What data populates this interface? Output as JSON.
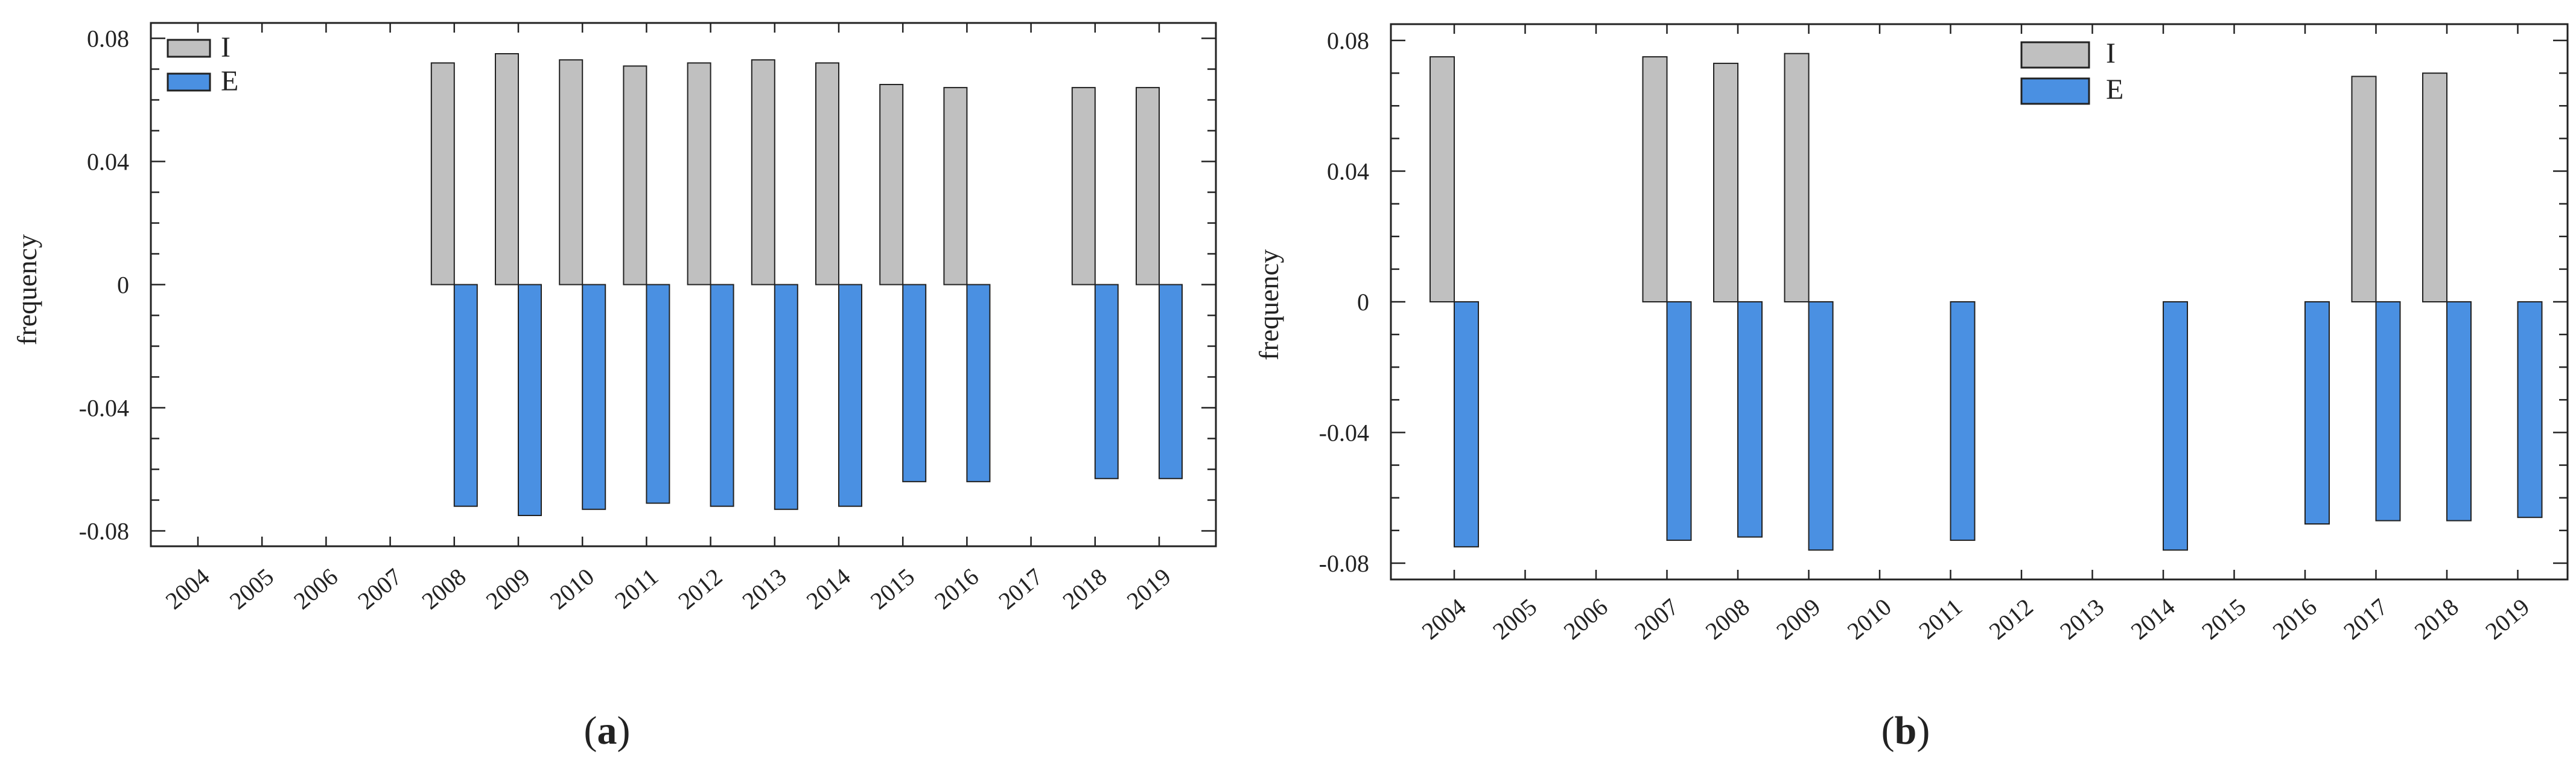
{
  "chart_data": [
    {
      "type": "bar",
      "panel_label": "a",
      "title": "",
      "xlabel": "",
      "ylabel": "frequency",
      "ylim": [
        -0.085,
        0.085
      ],
      "yticks": [
        0.08,
        0.04,
        0,
        -0.04,
        -0.08
      ],
      "ytick_labels": [
        "0.08",
        "0.04",
        "0",
        "-0.04",
        "-0.08"
      ],
      "categories": [
        "2004",
        "2005",
        "2006",
        "2007",
        "2008",
        "2009",
        "2010",
        "2011",
        "2012",
        "2013",
        "2014",
        "2015",
        "2016",
        "2017",
        "2018",
        "2019"
      ],
      "legend_position": "top-left",
      "series": [
        {
          "name": "I",
          "color": "#c0c0c0",
          "values": [
            null,
            null,
            null,
            null,
            0.072,
            0.075,
            0.073,
            0.071,
            0.072,
            0.073,
            0.072,
            0.065,
            0.064,
            null,
            0.064,
            0.064
          ]
        },
        {
          "name": "E",
          "color": "#4a90e2",
          "values": [
            null,
            null,
            null,
            null,
            -0.072,
            -0.075,
            -0.073,
            -0.071,
            -0.072,
            -0.073,
            -0.072,
            -0.064,
            -0.064,
            null,
            -0.063,
            -0.063
          ]
        }
      ]
    },
    {
      "type": "bar",
      "panel_label": "b",
      "title": "",
      "xlabel": "",
      "ylabel": "frequency",
      "ylim": [
        -0.085,
        0.085
      ],
      "yticks": [
        0.08,
        0.04,
        0,
        -0.04,
        -0.08
      ],
      "ytick_labels": [
        "0.08",
        "0.04",
        "0",
        "-0.04",
        "-0.08"
      ],
      "categories": [
        "2004",
        "2005",
        "2006",
        "2007",
        "2008",
        "2009",
        "2010",
        "2011",
        "2012",
        "2013",
        "2014",
        "2015",
        "2016",
        "2017",
        "2018",
        "2019"
      ],
      "legend_position": "top-center",
      "series": [
        {
          "name": "I",
          "color": "#c0c0c0",
          "values": [
            0.075,
            null,
            null,
            0.075,
            0.073,
            0.076,
            null,
            null,
            null,
            null,
            null,
            null,
            null,
            0.069,
            0.07,
            null
          ]
        },
        {
          "name": "E",
          "color": "#4a90e2",
          "values": [
            -0.075,
            null,
            null,
            -0.073,
            -0.072,
            -0.076,
            null,
            -0.073,
            null,
            null,
            -0.076,
            null,
            -0.068,
            -0.067,
            -0.067,
            -0.066
          ]
        }
      ]
    }
  ]
}
